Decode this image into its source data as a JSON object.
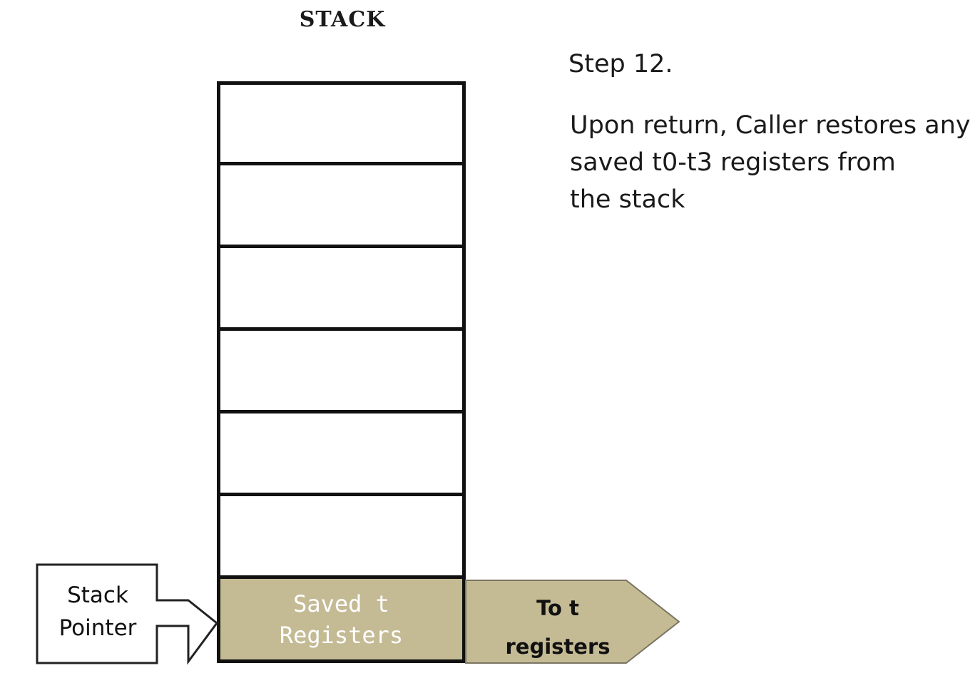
{
  "stack": {
    "title": "STACK",
    "empty_slot_count": 6,
    "saved_slot": {
      "line1": "Saved t",
      "line2": "Registers"
    }
  },
  "step": {
    "title": "Step 12.",
    "line1": "Upon return, Caller restores any",
    "line2": "saved t0-t3 registers from",
    "line3": "the stack"
  },
  "stack_pointer": {
    "line1": "Stack",
    "line2": "Pointer"
  },
  "output_arrow": {
    "line1": "To t",
    "line2": "registers"
  },
  "colors": {
    "saved_fill": "#c4bb95",
    "arrow_fill": "#c4bb95",
    "border": "#111111"
  }
}
